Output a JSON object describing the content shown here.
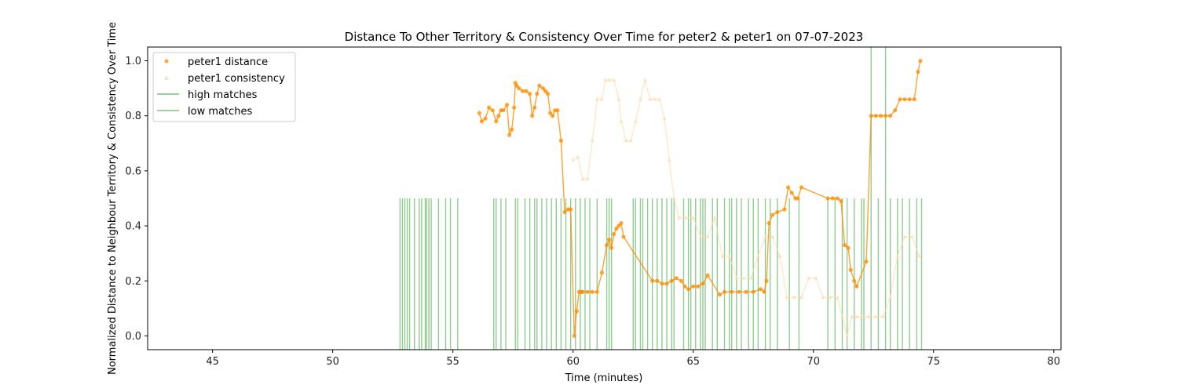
{
  "chart_data": {
    "type": "line",
    "title": "Distance To Other Territory & Consistency Over Time for peter2 & peter1 on 07-07-2023",
    "xlabel": "Time (minutes)",
    "ylabel": "Normalized Distance to Neighbour Territory & Consistency Over Time",
    "xlim": [
      42.3,
      80.3
    ],
    "ylim": [
      -0.05,
      1.05
    ],
    "xticks": [
      45,
      50,
      55,
      60,
      65,
      70,
      75,
      80
    ],
    "yticks": [
      0.0,
      0.2,
      0.4,
      0.6,
      0.8,
      1.0
    ],
    "xtick_labels": [
      "45",
      "50",
      "55",
      "60",
      "65",
      "70",
      "75",
      "80"
    ],
    "ytick_labels": [
      "0.0",
      "0.2",
      "0.4",
      "0.6",
      "0.8",
      "1.0"
    ],
    "grid": false,
    "legend_position": "top-left",
    "colors": {
      "distance": "#ff8c00",
      "consistency": "#ffdab0",
      "high_matches": "#7cc47c",
      "low_matches": "#7cc47c"
    },
    "series": [
      {
        "name": "peter1 distance",
        "kind": "line-scatter",
        "x": [
          56.1,
          56.2,
          56.35,
          56.5,
          56.65,
          56.8,
          56.9,
          57.0,
          57.1,
          57.25,
          57.35,
          57.45,
          57.55,
          57.6,
          57.65,
          57.75,
          57.9,
          58.05,
          58.2,
          58.3,
          58.4,
          58.5,
          58.6,
          58.75,
          58.85,
          58.95,
          59.05,
          59.15,
          59.25,
          59.35,
          59.5,
          59.65,
          59.8,
          59.9,
          60.05,
          60.15,
          60.25,
          60.3,
          60.35,
          60.4,
          60.6,
          60.8,
          61.0,
          61.2,
          61.4,
          61.5,
          61.6,
          61.7,
          61.8,
          61.9,
          62.0,
          62.1,
          63.3,
          63.5,
          63.7,
          63.9,
          64.1,
          64.3,
          64.5,
          64.65,
          64.8,
          65.0,
          65.2,
          65.4,
          65.6,
          66.1,
          66.3,
          66.6,
          66.9,
          67.2,
          67.5,
          67.8,
          67.95,
          68.05,
          68.15,
          68.3,
          68.5,
          68.8,
          68.95,
          69.1,
          69.25,
          69.35,
          69.5,
          70.6,
          70.8,
          71.0,
          71.15,
          71.3,
          71.45,
          71.55,
          71.7,
          71.8,
          72.2,
          72.4,
          72.6,
          72.8,
          73.0,
          73.2,
          73.4,
          73.6,
          73.8,
          74.0,
          74.2,
          74.35,
          74.45
        ],
        "y": [
          0.81,
          0.78,
          0.79,
          0.83,
          0.82,
          0.78,
          0.8,
          0.82,
          0.82,
          0.84,
          0.73,
          0.75,
          0.83,
          0.92,
          0.91,
          0.9,
          0.89,
          0.89,
          0.88,
          0.8,
          0.83,
          0.88,
          0.91,
          0.9,
          0.89,
          0.88,
          0.81,
          0.8,
          0.82,
          0.82,
          0.71,
          0.45,
          0.46,
          0.46,
          0.0,
          0.09,
          0.16,
          0.16,
          0.16,
          0.16,
          0.16,
          0.16,
          0.16,
          0.23,
          0.33,
          0.35,
          0.32,
          0.37,
          0.39,
          0.4,
          0.41,
          0.36,
          0.2,
          0.2,
          0.19,
          0.19,
          0.2,
          0.21,
          0.2,
          0.18,
          0.17,
          0.18,
          0.18,
          0.19,
          0.22,
          0.15,
          0.16,
          0.16,
          0.16,
          0.16,
          0.16,
          0.17,
          0.16,
          0.2,
          0.41,
          0.44,
          0.45,
          0.46,
          0.54,
          0.52,
          0.5,
          0.5,
          0.54,
          0.5,
          0.5,
          0.5,
          0.49,
          0.33,
          0.32,
          0.24,
          0.2,
          0.18,
          0.27,
          0.8,
          0.8,
          0.8,
          0.8,
          0.8,
          0.82,
          0.86,
          0.86,
          0.86,
          0.86,
          0.96,
          1.0
        ]
      },
      {
        "name": "peter1 consistency",
        "kind": "faint-line-scatter",
        "x": [
          60.0,
          60.2,
          60.4,
          60.6,
          60.8,
          61.0,
          61.2,
          61.35,
          61.5,
          61.7,
          61.9,
          62.0,
          62.2,
          62.4,
          62.6,
          62.8,
          63.0,
          63.2,
          63.4,
          63.6,
          63.8,
          64.0,
          64.2,
          64.4,
          64.7,
          65.0,
          65.3,
          65.6,
          65.9,
          66.2,
          66.5,
          66.8,
          67.1,
          67.4,
          67.7,
          68.0,
          68.3,
          68.6,
          68.9,
          69.2,
          69.5,
          69.8,
          70.1,
          70.4,
          70.7,
          71.0,
          71.2,
          71.4,
          71.6,
          71.8,
          72.0,
          72.3,
          72.6,
          72.9,
          73.2,
          73.5,
          73.8,
          74.1,
          74.4
        ],
        "y": [
          0.64,
          0.65,
          0.57,
          0.57,
          0.71,
          0.86,
          0.86,
          0.93,
          0.93,
          0.93,
          0.86,
          0.78,
          0.71,
          0.71,
          0.78,
          0.86,
          0.93,
          0.86,
          0.86,
          0.86,
          0.79,
          0.64,
          0.5,
          0.43,
          0.43,
          0.43,
          0.36,
          0.36,
          0.43,
          0.29,
          0.29,
          0.21,
          0.21,
          0.21,
          0.29,
          0.36,
          0.36,
          0.29,
          0.14,
          0.14,
          0.14,
          0.21,
          0.21,
          0.14,
          0.14,
          0.14,
          0.07,
          0.0,
          0.07,
          0.07,
          0.07,
          0.07,
          0.07,
          0.07,
          0.14,
          0.29,
          0.36,
          0.36,
          0.29
        ]
      },
      {
        "name": "high matches",
        "kind": "vlines",
        "ymin": 0.5,
        "ymax": 1.05,
        "x": [
          72.4,
          73.0
        ]
      },
      {
        "name": "low matches",
        "kind": "vlines",
        "ymin": -0.05,
        "ymax": 0.5,
        "x": [
          52.8,
          52.9,
          53.0,
          53.1,
          53.2,
          53.4,
          53.6,
          53.7,
          53.85,
          53.9,
          54.0,
          54.1,
          54.4,
          54.7,
          54.9,
          55.2,
          56.7,
          56.8,
          57.0,
          57.2,
          57.6,
          57.7,
          58.0,
          58.2,
          58.4,
          58.5,
          58.7,
          58.9,
          59.1,
          59.3,
          59.5,
          59.7,
          59.9,
          60.1,
          60.3,
          60.5,
          60.7,
          61.0,
          61.4,
          61.5,
          61.6,
          62.5,
          62.6,
          62.8,
          62.9,
          63.1,
          63.3,
          63.5,
          63.7,
          63.9,
          64.1,
          64.2,
          64.6,
          64.8,
          64.9,
          65.1,
          65.3,
          65.4,
          65.5,
          65.8,
          66.0,
          66.3,
          66.5,
          66.6,
          66.8,
          67.0,
          67.3,
          67.5,
          67.7,
          68.0,
          68.2,
          68.5,
          69.0,
          69.4,
          70.6,
          70.9,
          71.2,
          71.4,
          71.7,
          72.0,
          72.1,
          72.4,
          72.7,
          73.0,
          73.2,
          73.5,
          73.7,
          74.0,
          74.3,
          74.5
        ]
      }
    ]
  }
}
